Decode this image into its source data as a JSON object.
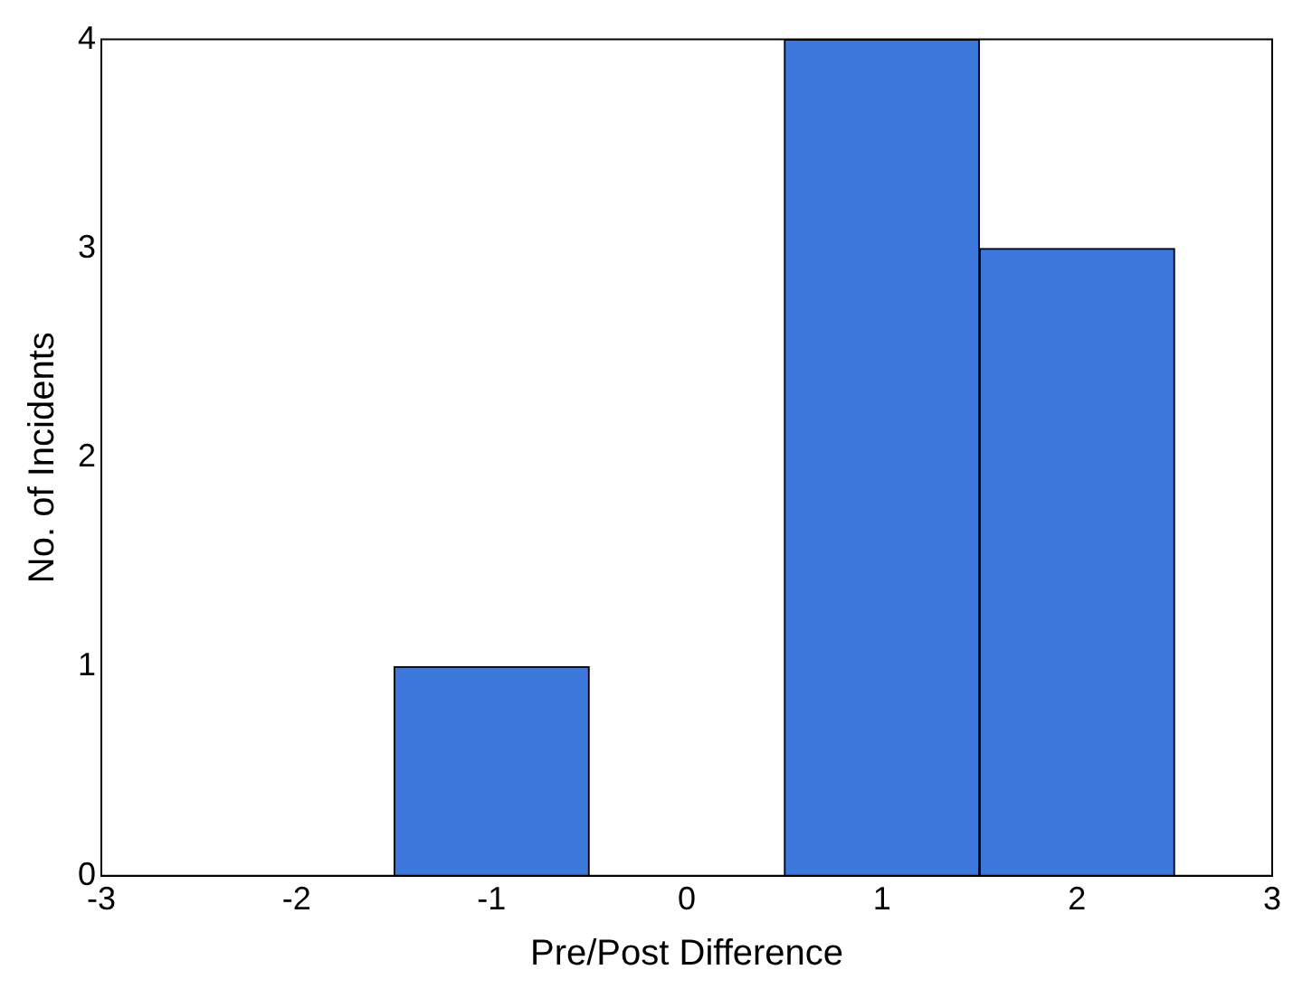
{
  "chart_data": {
    "type": "histogram",
    "xlabel": "Pre/Post Difference",
    "ylabel": "No. of Incidents",
    "bins": [
      -1.5,
      -0.5,
      0.5,
      1.5,
      2.5
    ],
    "values": [
      1,
      0,
      4,
      3
    ],
    "color": "#3c78dc",
    "xlim": [
      -3,
      3
    ],
    "xticks": [
      -3,
      -2,
      -1,
      0,
      1,
      2,
      3
    ],
    "ylim": [
      0,
      4
    ],
    "yticks": [
      0,
      1,
      2,
      3,
      4
    ],
    "grid": false,
    "legend": false
  }
}
